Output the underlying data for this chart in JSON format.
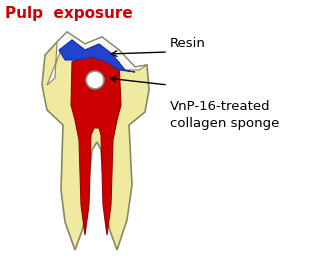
{
  "title": "Pulp  exposure",
  "title_color": "#cc0000",
  "title_fontsize": 11,
  "label_resin": "Resin",
  "label_collagen": "VnP-16-treated\ncollagen sponge",
  "bg_color": "#ffffff",
  "dentin_color": "#f0eaa0",
  "enamel_color": "#f8f8f8",
  "pulp_color": "#cc0000",
  "resin_color": "#2244cc",
  "sponge_color": "#ffffff",
  "label_fontsize": 9.5,
  "tooth_edge_color": "#888866",
  "pulp_edge_color": "#990000"
}
